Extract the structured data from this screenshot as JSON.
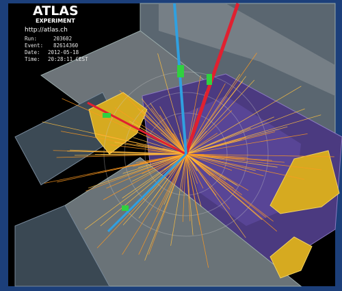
{
  "logo": {
    "title": "ATLAS",
    "subtitle": "EXPERIMENT",
    "url": "http://atlas.ch"
  },
  "info": [
    {
      "label": "Run:",
      "value": "203602"
    },
    {
      "label": "Event:",
      "value": "82614360"
    },
    {
      "label": "Date:",
      "value": "2012-05-18"
    },
    {
      "label": "Time:",
      "value": "20:28:11 CEST"
    }
  ]
}
